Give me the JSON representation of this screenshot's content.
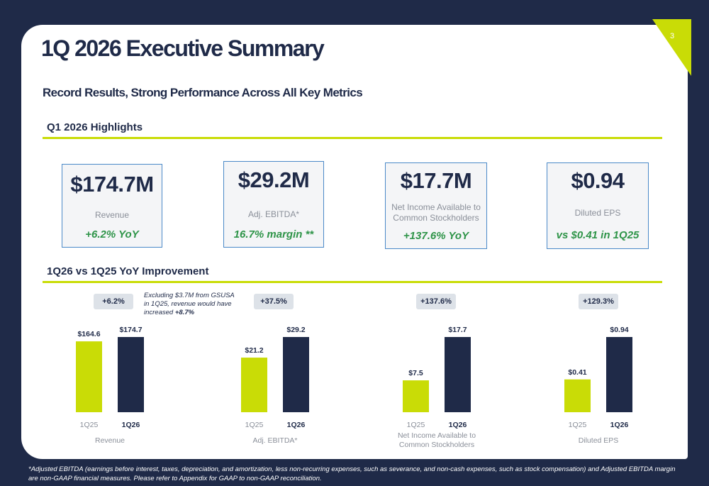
{
  "page_number": "3",
  "title": "1Q 2026 Executive Summary",
  "subtitle": "Record Results, Strong Performance Across All Key Metrics",
  "highlights": {
    "heading": "Q1 2026 Highlights",
    "cards": [
      {
        "value": "$174.7M",
        "label": "Revenue",
        "sub": "+6.2% YoY"
      },
      {
        "value": "$29.2M",
        "label": "Adj. EBITDA*",
        "sub": "16.7% margin **"
      },
      {
        "value": "$17.7M",
        "label": "Net Income Available to Common Stockholders",
        "label_line1": "Net Income Available to",
        "label_line2": "Common Stockholders",
        "sub": "+137.6% YoY"
      },
      {
        "value": "$0.94",
        "label": "Diluted EPS",
        "sub": "vs $0.41 in 1Q25"
      }
    ]
  },
  "improvement": {
    "heading": "1Q26 vs 1Q25 YoY Improvement",
    "note": "Excluding $3.7M from GSUSA in 1Q25, revenue would have increased +8.7%",
    "note_line1": "Excluding $3.7M from GSUSA",
    "note_line2": "in 1Q25, revenue would have",
    "note_line3": "increased ",
    "note_bold": "+8.7%"
  },
  "colors": {
    "navy": "#1f2a48",
    "lime": "#c9dc06",
    "green": "#2e9448",
    "card_border": "#4a89c8"
  },
  "chart_data": [
    {
      "type": "bar",
      "title": "Revenue",
      "categories": [
        "1Q25",
        "1Q26"
      ],
      "values": [
        164.6,
        174.7
      ],
      "data_labels": [
        "$164.6",
        "$174.7"
      ],
      "change_label": "+6.2%",
      "colors": [
        "#c9dc06",
        "#1f2a48"
      ]
    },
    {
      "type": "bar",
      "title": "Adj. EBITDA*",
      "categories": [
        "1Q25",
        "1Q26"
      ],
      "values": [
        21.2,
        29.2
      ],
      "data_labels": [
        "$21.2",
        "$29.2"
      ],
      "change_label": "+37.5%",
      "colors": [
        "#c9dc06",
        "#1f2a48"
      ]
    },
    {
      "type": "bar",
      "title": "Net Income Available to Common Stockholders",
      "title_line1": "Net Income Available to",
      "title_line2": "Common Stockholders",
      "categories": [
        "1Q25",
        "1Q26"
      ],
      "values": [
        7.5,
        17.7
      ],
      "data_labels": [
        "$7.5",
        "$17.7"
      ],
      "change_label": "+137.6%",
      "colors": [
        "#c9dc06",
        "#1f2a48"
      ]
    },
    {
      "type": "bar",
      "title": "Diluted EPS",
      "categories": [
        "1Q25",
        "1Q26"
      ],
      "values": [
        0.41,
        0.94
      ],
      "data_labels": [
        "$0.41",
        "$0.94"
      ],
      "change_label": "+129.3%",
      "colors": [
        "#c9dc06",
        "#1f2a48"
      ]
    }
  ],
  "footnote": "*Adjusted EBITDA (earnings before interest, taxes, depreciation, and amortization, less non-recurring expenses, such as severance, and non-cash expenses, such as stock compensation) and Adjusted EBITDA margin are non-GAAP financial measures. Please refer to Appendix for GAAP to non-GAAP reconciliation."
}
